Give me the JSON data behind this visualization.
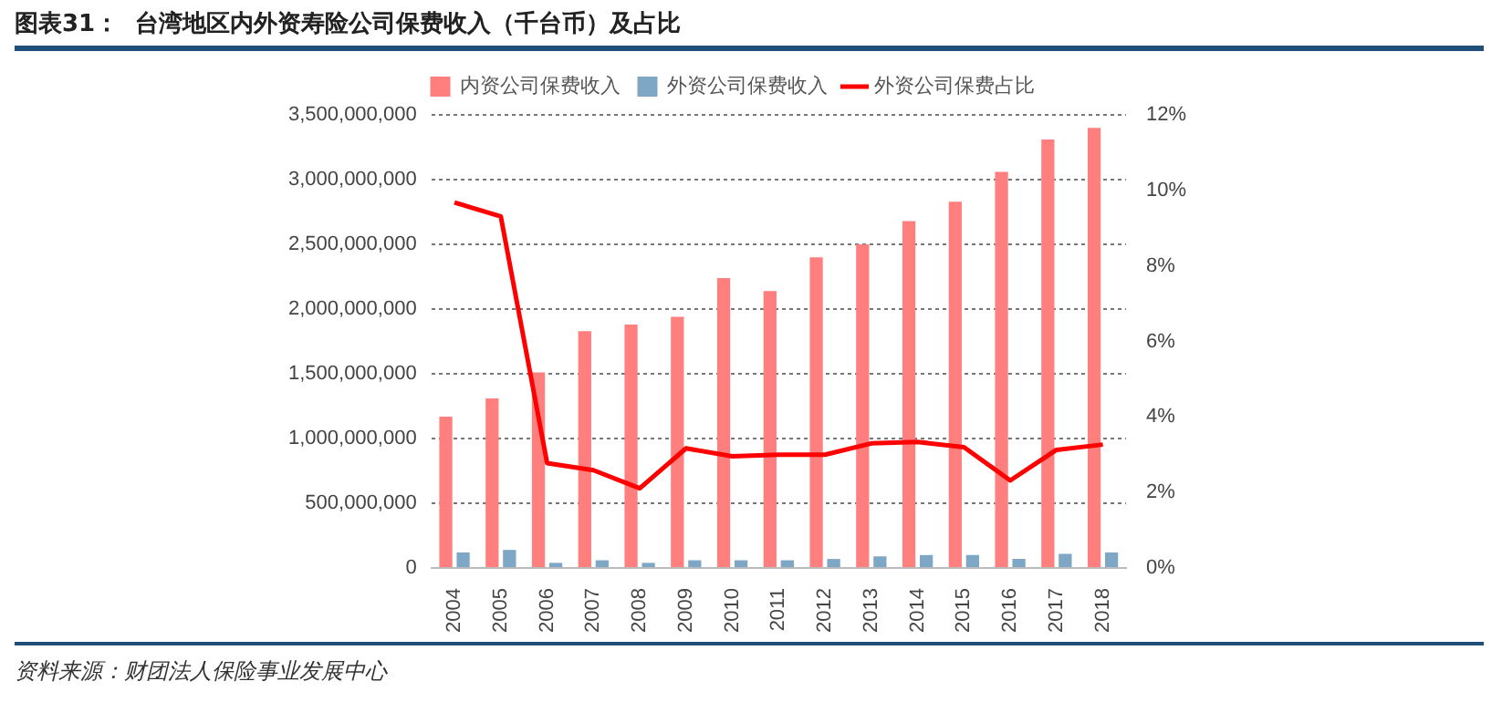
{
  "chart_data": {
    "type": "bar",
    "title": "图表31：  台湾地区内外资寿险公司保费收入（千台币）及占比",
    "annotations": [
      "资料来源：财团法人保险事业发展中心"
    ],
    "categories": [
      "2004",
      "2005",
      "2006",
      "2007",
      "2008",
      "2009",
      "2010",
      "2011",
      "2012",
      "2013",
      "2014",
      "2015",
      "2016",
      "2017",
      "2018"
    ],
    "series": [
      {
        "name": "内资公司保费收入",
        "color": "#ff7f7f",
        "values": [
          1170000000,
          1310000000,
          1510000000,
          1830000000,
          1880000000,
          1940000000,
          2240000000,
          2140000000,
          2400000000,
          2500000000,
          2680000000,
          2830000000,
          3060000000,
          3310000000,
          3400000000
        ]
      },
      {
        "name": "外资公司保费收入",
        "color": "#7da7c4",
        "values": [
          120000000,
          140000000,
          40000000,
          60000000,
          40000000,
          60000000,
          60000000,
          60000000,
          70000000,
          90000000,
          100000000,
          100000000,
          70000000,
          110000000,
          120000000
        ]
      },
      {
        "name": "外资公司保费占比",
        "type": "line",
        "axis": "y2",
        "color": "#ff0000",
        "values": [
          9.68,
          9.31,
          2.78,
          2.59,
          2.11,
          3.17,
          2.96,
          3.0,
          3.0,
          3.3,
          3.34,
          3.2,
          2.32,
          3.13,
          3.27
        ]
      }
    ],
    "ylim": [
      0,
      3500000000
    ],
    "yticks": [
      {
        "value": 0,
        "label": "0"
      },
      {
        "value": 500000000,
        "label": "500,000,000"
      },
      {
        "value": 1000000000,
        "label": "1,000,000,000"
      },
      {
        "value": 1500000000,
        "label": "1,500,000,000"
      },
      {
        "value": 2000000000,
        "label": "2,000,000,000"
      },
      {
        "value": 2500000000,
        "label": "2,500,000,000"
      },
      {
        "value": 3000000000,
        "label": "3,000,000,000"
      },
      {
        "value": 3500000000,
        "label": "3,500,000,000"
      }
    ],
    "y2lim": [
      0,
      12
    ],
    "y2ticks": [
      {
        "value": 0,
        "label": "0%"
      },
      {
        "value": 2,
        "label": "2%"
      },
      {
        "value": 4,
        "label": "4%"
      },
      {
        "value": 6,
        "label": "6%"
      },
      {
        "value": 8,
        "label": "8%"
      },
      {
        "value": 10,
        "label": "10%"
      },
      {
        "value": 12,
        "label": "12%"
      }
    ],
    "grid": "y",
    "legend": "top"
  }
}
